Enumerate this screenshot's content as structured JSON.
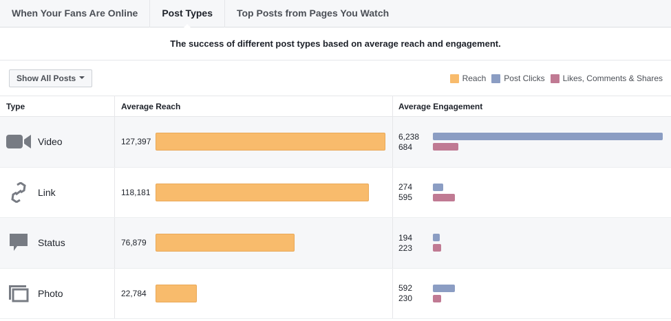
{
  "tabs": [
    {
      "label": "When Your Fans Are Online"
    },
    {
      "label": "Post Types",
      "active": true
    },
    {
      "label": "Top Posts from Pages You Watch"
    }
  ],
  "subtitle": "The success of different post types based on average reach and engagement.",
  "filter": {
    "label": "Show All Posts"
  },
  "legend": [
    {
      "label": "Reach",
      "color": "#f8bb6c"
    },
    {
      "label": "Post Clicks",
      "color": "#8b9dc3"
    },
    {
      "label": "Likes, Comments & Shares",
      "color": "#c07a93"
    }
  ],
  "headers": {
    "type": "Type",
    "reach": "Average Reach",
    "engagement": "Average Engagement"
  },
  "chart_data": {
    "type": "bar",
    "categories": [
      "Video",
      "Link",
      "Status",
      "Photo"
    ],
    "icons": [
      "video-camera-icon",
      "link-icon",
      "speech-bubble-icon",
      "photo-icon"
    ],
    "reach_labels": [
      "127,397",
      "118,181",
      "76,879",
      "22,784"
    ],
    "reach": [
      127397,
      118181,
      76879,
      22784
    ],
    "post_clicks_labels": [
      "6,238",
      "274",
      "194",
      "592"
    ],
    "post_clicks": [
      6238,
      274,
      194,
      592
    ],
    "likes_labels": [
      "684",
      "595",
      "223",
      "230"
    ],
    "likes_comments_shares": [
      684,
      595,
      223,
      230
    ]
  }
}
